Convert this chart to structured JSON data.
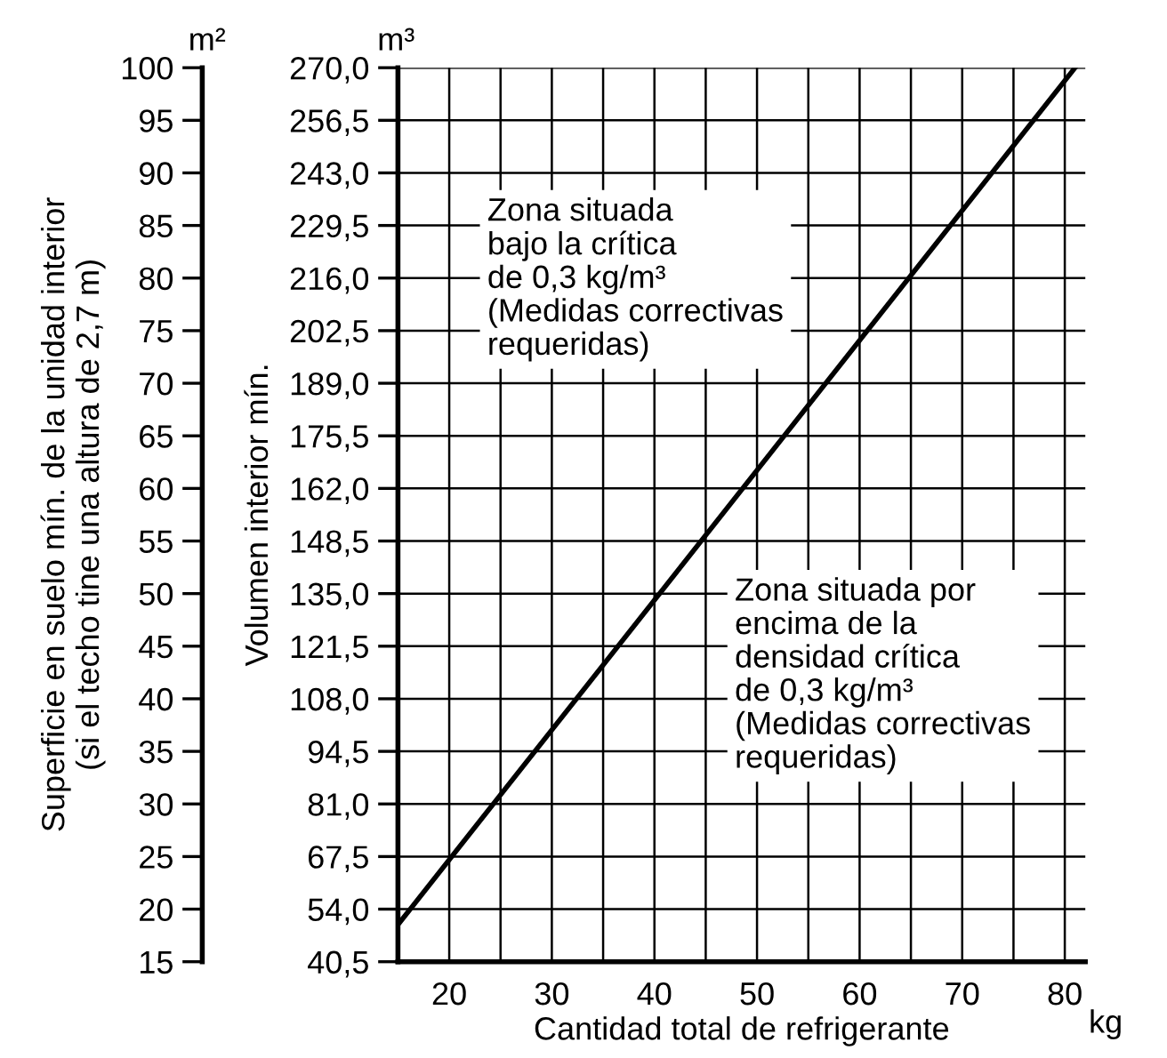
{
  "chart_data": {
    "type": "line",
    "xlabel": "Cantidad total de refrigerante",
    "ylabel": "Volumen interior mín.",
    "y2label": "Superficie en suelo mín. de la unidad interior\n(si el techo tine una altura de 2,7 m)",
    "x": [
      15,
      81
    ],
    "series": [
      {
        "color": "#000000",
        "values": [
          50,
          270
        ]
      }
    ],
    "xlim": [
      15,
      82
    ],
    "xticks": [
      {
        "value": 15,
        "label": null
      },
      20,
      {
        "value": 25,
        "label": null
      },
      30,
      {
        "value": 35,
        "label": null
      },
      40,
      {
        "value": 45,
        "label": null
      },
      50,
      {
        "value": 55,
        "label": null
      },
      60,
      {
        "value": 65,
        "label": null
      },
      70,
      {
        "value": 75,
        "label": null
      },
      80
    ],
    "ylim": [
      40.5,
      270
    ],
    "yticks": [
      {
        "value": 40.5,
        "label": "40,5"
      },
      {
        "value": 54,
        "label": "54,0"
      },
      {
        "value": 67.5,
        "label": "67,5"
      },
      {
        "value": 81,
        "label": "81,0"
      },
      {
        "value": 94.5,
        "label": "94,5"
      },
      {
        "value": 108,
        "label": "108,0"
      },
      {
        "value": 121.5,
        "label": "121,5"
      },
      {
        "value": 135,
        "label": "135,0"
      },
      {
        "value": 148.5,
        "label": "148,5"
      },
      {
        "value": 162,
        "label": "162,0"
      },
      {
        "value": 175.5,
        "label": "175,5"
      },
      {
        "value": 189,
        "label": "189,0"
      },
      {
        "value": 202.5,
        "label": "202,5"
      },
      {
        "value": 216,
        "label": "216,0"
      },
      {
        "value": 229.5,
        "label": "229,5"
      },
      {
        "value": 243,
        "label": "243,0"
      },
      {
        "value": 256.5,
        "label": "256,5"
      },
      {
        "value": 270,
        "label": "270,0"
      }
    ],
    "y2lim": [
      15,
      100
    ],
    "y2ticks": [
      15,
      20,
      25,
      30,
      35,
      40,
      45,
      50,
      55,
      60,
      65,
      70,
      75,
      80,
      85,
      90,
      95,
      100
    ],
    "grid": true,
    "marker": "none",
    "line_style": "solid",
    "legend": false,
    "annotations": [
      "Zona situada\nbajo la crítica\nde 0,3 kg/m³\n(Medidas correctivas\nrequeridas)",
      "Zona situada por\nencima de la\ndensidad crítica\nde 0,3 kg/m³\n(Medidas correctivas\nrequeridas)",
      "m³",
      "m²",
      "kg"
    ]
  }
}
